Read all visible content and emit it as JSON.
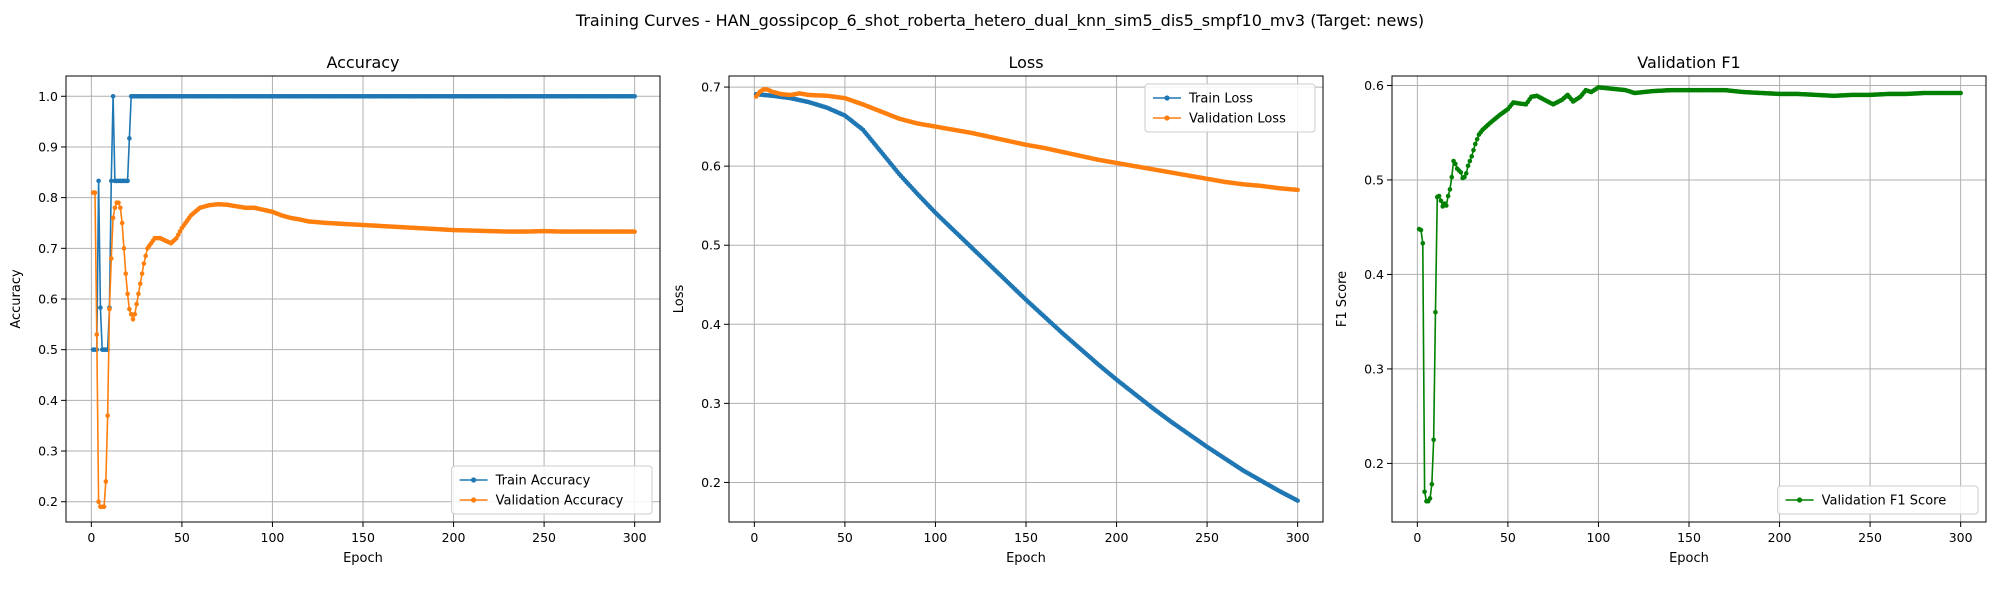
{
  "figure": {
    "suptitle": "Training Curves - HAN_gossipcop_6_shot_roberta_hetero_dual_knn_sim5_dis5_smpf10_mv3 (Target: news)"
  },
  "colors": {
    "blue": "#1f77b4",
    "orange": "#ff7f0e",
    "green": "#008000",
    "grid": "#b0b0b0"
  },
  "chart_data": [
    {
      "type": "line",
      "title": "Accuracy",
      "xlabel": "Epoch",
      "ylabel": "Accuracy",
      "xlim": [
        -14,
        314
      ],
      "ylim": [
        0.16,
        1.04
      ],
      "xticks": [
        0,
        50,
        100,
        150,
        200,
        250,
        300
      ],
      "yticks": [
        0.2,
        0.3,
        0.4,
        0.5,
        0.6,
        0.7,
        0.8,
        0.9,
        1.0
      ],
      "grid": true,
      "legend_position": "lower-right",
      "series": [
        {
          "name": "Train Accuracy",
          "color": "#1f77b4",
          "points": [
            [
              1,
              0.5
            ],
            [
              2,
              0.5
            ],
            [
              3,
              0.5
            ],
            [
              4,
              0.833
            ],
            [
              5,
              0.583
            ],
            [
              6,
              0.5
            ],
            [
              7,
              0.5
            ],
            [
              8,
              0.5
            ],
            [
              9,
              0.5
            ],
            [
              10,
              0.583
            ],
            [
              11,
              0.833
            ],
            [
              12,
              1.0
            ],
            [
              13,
              0.833
            ],
            [
              14,
              0.833
            ],
            [
              15,
              0.833
            ],
            [
              16,
              0.833
            ],
            [
              17,
              0.833
            ],
            [
              18,
              0.833
            ],
            [
              19,
              0.833
            ],
            [
              20,
              0.833
            ],
            [
              21,
              0.917
            ],
            [
              22,
              1.0
            ],
            [
              300,
              1.0
            ]
          ]
        },
        {
          "name": "Validation Accuracy",
          "color": "#ff7f0e",
          "points": [
            [
              1,
              0.81
            ],
            [
              2,
              0.81
            ],
            [
              3,
              0.53
            ],
            [
              4,
              0.2
            ],
            [
              5,
              0.19
            ],
            [
              6,
              0.19
            ],
            [
              7,
              0.19
            ],
            [
              8,
              0.24
            ],
            [
              9,
              0.37
            ],
            [
              10,
              0.58
            ],
            [
              11,
              0.68
            ],
            [
              12,
              0.76
            ],
            [
              13,
              0.78
            ],
            [
              14,
              0.79
            ],
            [
              15,
              0.79
            ],
            [
              16,
              0.78
            ],
            [
              17,
              0.75
            ],
            [
              18,
              0.7
            ],
            [
              19,
              0.65
            ],
            [
              20,
              0.61
            ],
            [
              21,
              0.58
            ],
            [
              22,
              0.57
            ],
            [
              23,
              0.56
            ],
            [
              24,
              0.57
            ],
            [
              25,
              0.59
            ],
            [
              27,
              0.63
            ],
            [
              29,
              0.67
            ],
            [
              31,
              0.7
            ],
            [
              33,
              0.71
            ],
            [
              35,
              0.72
            ],
            [
              38,
              0.72
            ],
            [
              41,
              0.715
            ],
            [
              44,
              0.71
            ],
            [
              47,
              0.72
            ],
            [
              50,
              0.74
            ],
            [
              55,
              0.765
            ],
            [
              60,
              0.78
            ],
            [
              65,
              0.785
            ],
            [
              70,
              0.787
            ],
            [
              75,
              0.786
            ],
            [
              80,
              0.783
            ],
            [
              85,
              0.78
            ],
            [
              90,
              0.78
            ],
            [
              95,
              0.776
            ],
            [
              100,
              0.772
            ],
            [
              105,
              0.765
            ],
            [
              110,
              0.76
            ],
            [
              115,
              0.757
            ],
            [
              120,
              0.753
            ],
            [
              130,
              0.75
            ],
            [
              140,
              0.748
            ],
            [
              150,
              0.746
            ],
            [
              160,
              0.744
            ],
            [
              170,
              0.742
            ],
            [
              180,
              0.74
            ],
            [
              190,
              0.738
            ],
            [
              200,
              0.736
            ],
            [
              210,
              0.735
            ],
            [
              220,
              0.734
            ],
            [
              230,
              0.733
            ],
            [
              240,
              0.733
            ],
            [
              250,
              0.734
            ],
            [
              260,
              0.733
            ],
            [
              270,
              0.733
            ],
            [
              280,
              0.733
            ],
            [
              290,
              0.733
            ],
            [
              300,
              0.733
            ]
          ]
        }
      ]
    },
    {
      "type": "line",
      "title": "Loss",
      "xlabel": "Epoch",
      "ylabel": "Loss",
      "xlim": [
        -14,
        314
      ],
      "ylim": [
        0.15,
        0.714
      ],
      "xticks": [
        0,
        50,
        100,
        150,
        200,
        250,
        300
      ],
      "yticks": [
        0.2,
        0.3,
        0.4,
        0.5,
        0.6,
        0.7
      ],
      "grid": true,
      "legend_position": "upper-right",
      "series": [
        {
          "name": "Train Loss",
          "color": "#1f77b4",
          "points": [
            [
              1,
              0.691
            ],
            [
              10,
              0.689
            ],
            [
              20,
              0.686
            ],
            [
              30,
              0.681
            ],
            [
              40,
              0.674
            ],
            [
              50,
              0.664
            ],
            [
              60,
              0.646
            ],
            [
              70,
              0.618
            ],
            [
              80,
              0.59
            ],
            [
              90,
              0.565
            ],
            [
              100,
              0.541
            ],
            [
              110,
              0.519
            ],
            [
              120,
              0.497
            ],
            [
              130,
              0.475
            ],
            [
              140,
              0.453
            ],
            [
              150,
              0.431
            ],
            [
              160,
              0.41
            ],
            [
              170,
              0.389
            ],
            [
              180,
              0.369
            ],
            [
              190,
              0.349
            ],
            [
              200,
              0.33
            ],
            [
              210,
              0.312
            ],
            [
              220,
              0.294
            ],
            [
              230,
              0.277
            ],
            [
              240,
              0.261
            ],
            [
              250,
              0.245
            ],
            [
              260,
              0.23
            ],
            [
              270,
              0.215
            ],
            [
              280,
              0.202
            ],
            [
              290,
              0.189
            ],
            [
              300,
              0.177
            ]
          ]
        },
        {
          "name": "Validation Loss",
          "color": "#ff7f0e",
          "points": [
            [
              1,
              0.688
            ],
            [
              3,
              0.694
            ],
            [
              5,
              0.697
            ],
            [
              7,
              0.697
            ],
            [
              10,
              0.694
            ],
            [
              15,
              0.691
            ],
            [
              20,
              0.69
            ],
            [
              25,
              0.692
            ],
            [
              30,
              0.69
            ],
            [
              40,
              0.689
            ],
            [
              50,
              0.686
            ],
            [
              60,
              0.678
            ],
            [
              70,
              0.669
            ],
            [
              80,
              0.66
            ],
            [
              90,
              0.654
            ],
            [
              100,
              0.65
            ],
            [
              110,
              0.646
            ],
            [
              120,
              0.642
            ],
            [
              130,
              0.637
            ],
            [
              140,
              0.632
            ],
            [
              150,
              0.627
            ],
            [
              160,
              0.623
            ],
            [
              170,
              0.618
            ],
            [
              180,
              0.613
            ],
            [
              190,
              0.608
            ],
            [
              200,
              0.604
            ],
            [
              210,
              0.6
            ],
            [
              220,
              0.596
            ],
            [
              230,
              0.592
            ],
            [
              240,
              0.588
            ],
            [
              250,
              0.584
            ],
            [
              260,
              0.58
            ],
            [
              270,
              0.577
            ],
            [
              280,
              0.575
            ],
            [
              290,
              0.572
            ],
            [
              300,
              0.57
            ]
          ]
        }
      ]
    },
    {
      "type": "line",
      "title": "Validation F1",
      "xlabel": "Epoch",
      "ylabel": "F1 Score",
      "xlim": [
        -14,
        314
      ],
      "ylim": [
        0.138,
        0.61
      ],
      "xticks": [
        0,
        50,
        100,
        150,
        200,
        250,
        300
      ],
      "yticks": [
        0.2,
        0.3,
        0.4,
        0.5,
        0.6
      ],
      "grid": true,
      "legend_position": "lower-right",
      "series": [
        {
          "name": "Validation F1 Score",
          "color": "#008000",
          "points": [
            [
              1,
              0.448
            ],
            [
              2,
              0.447
            ],
            [
              3,
              0.433
            ],
            [
              4,
              0.17
            ],
            [
              5,
              0.16
            ],
            [
              6,
              0.16
            ],
            [
              7,
              0.163
            ],
            [
              8,
              0.178
            ],
            [
              9,
              0.225
            ],
            [
              10,
              0.36
            ],
            [
              11,
              0.482
            ],
            [
              12,
              0.483
            ],
            [
              13,
              0.478
            ],
            [
              14,
              0.472
            ],
            [
              15,
              0.475
            ],
            [
              16,
              0.473
            ],
            [
              17,
              0.483
            ],
            [
              18,
              0.49
            ],
            [
              19,
              0.503
            ],
            [
              20,
              0.52
            ],
            [
              21,
              0.517
            ],
            [
              22,
              0.512
            ],
            [
              23,
              0.51
            ],
            [
              24,
              0.508
            ],
            [
              25,
              0.502
            ],
            [
              26,
              0.503
            ],
            [
              27,
              0.507
            ],
            [
              28,
              0.515
            ],
            [
              30,
              0.525
            ],
            [
              32,
              0.538
            ],
            [
              34,
              0.548
            ],
            [
              36,
              0.553
            ],
            [
              40,
              0.56
            ],
            [
              45,
              0.568
            ],
            [
              50,
              0.575
            ],
            [
              53,
              0.582
            ],
            [
              56,
              0.581
            ],
            [
              60,
              0.58
            ],
            [
              63,
              0.588
            ],
            [
              66,
              0.589
            ],
            [
              70,
              0.585
            ],
            [
              75,
              0.58
            ],
            [
              80,
              0.585
            ],
            [
              83,
              0.59
            ],
            [
              86,
              0.583
            ],
            [
              90,
              0.588
            ],
            [
              93,
              0.595
            ],
            [
              96,
              0.593
            ],
            [
              100,
              0.598
            ],
            [
              105,
              0.597
            ],
            [
              110,
              0.596
            ],
            [
              115,
              0.595
            ],
            [
              120,
              0.592
            ],
            [
              125,
              0.593
            ],
            [
              130,
              0.594
            ],
            [
              140,
              0.595
            ],
            [
              150,
              0.595
            ],
            [
              160,
              0.595
            ],
            [
              170,
              0.595
            ],
            [
              180,
              0.593
            ],
            [
              190,
              0.592
            ],
            [
              200,
              0.591
            ],
            [
              210,
              0.591
            ],
            [
              220,
              0.59
            ],
            [
              230,
              0.589
            ],
            [
              240,
              0.59
            ],
            [
              250,
              0.59
            ],
            [
              260,
              0.591
            ],
            [
              270,
              0.591
            ],
            [
              280,
              0.592
            ],
            [
              290,
              0.592
            ],
            [
              300,
              0.592
            ]
          ]
        }
      ]
    }
  ]
}
